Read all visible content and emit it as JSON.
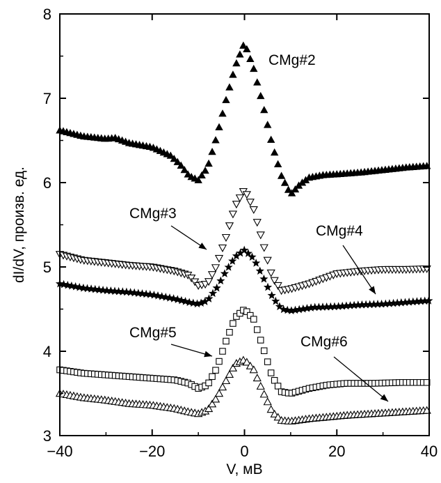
{
  "chart_data": {
    "type": "scatter",
    "xlabel": "V, мВ",
    "ylabel": "dI/dV, произв. ед.",
    "xlim": [
      -40,
      40
    ],
    "ylim": [
      3,
      8
    ],
    "xticks": [
      -40,
      -20,
      0,
      20,
      40
    ],
    "yticks": [
      3,
      4,
      5,
      6,
      7,
      8
    ],
    "grid": false,
    "series": [
      {
        "name": "CMg#2",
        "marker": "triangle-up-filled",
        "color": "#000000",
        "points": [
          [
            -40,
            6.62
          ],
          [
            -35,
            6.55
          ],
          [
            -30,
            6.52
          ],
          [
            -28,
            6.53
          ],
          [
            -25,
            6.47
          ],
          [
            -20,
            6.42
          ],
          [
            -16,
            6.32
          ],
          [
            -14,
            6.22
          ],
          [
            -12,
            6.08
          ],
          [
            -10,
            6.03
          ],
          [
            -8,
            6.18
          ],
          [
            -6,
            6.55
          ],
          [
            -4,
            6.98
          ],
          [
            -2,
            7.38
          ],
          [
            0,
            7.66
          ],
          [
            2,
            7.35
          ],
          [
            4,
            6.92
          ],
          [
            6,
            6.45
          ],
          [
            8,
            6.08
          ],
          [
            10,
            5.86
          ],
          [
            12,
            5.98
          ],
          [
            14,
            6.06
          ],
          [
            17,
            6.09
          ],
          [
            20,
            6.1
          ],
          [
            25,
            6.12
          ],
          [
            30,
            6.15
          ],
          [
            35,
            6.18
          ],
          [
            40,
            6.2
          ]
        ]
      },
      {
        "name": "CMg#3",
        "marker": "triangle-down-open",
        "color": "#000000",
        "points": [
          [
            -40,
            5.15
          ],
          [
            -35,
            5.08
          ],
          [
            -30,
            5.05
          ],
          [
            -25,
            5.02
          ],
          [
            -20,
            5.0
          ],
          [
            -15,
            4.95
          ],
          [
            -12,
            4.9
          ],
          [
            -10,
            4.78
          ],
          [
            -8,
            4.8
          ],
          [
            -6,
            5.02
          ],
          [
            -4,
            5.35
          ],
          [
            -2,
            5.72
          ],
          [
            0,
            5.92
          ],
          [
            2,
            5.68
          ],
          [
            4,
            5.28
          ],
          [
            6,
            4.88
          ],
          [
            8,
            4.72
          ],
          [
            10,
            4.74
          ],
          [
            14,
            4.8
          ],
          [
            18,
            4.88
          ],
          [
            20,
            4.92
          ],
          [
            25,
            4.95
          ],
          [
            30,
            4.97
          ],
          [
            35,
            4.97
          ],
          [
            40,
            4.98
          ]
        ]
      },
      {
        "name": "CMg#4",
        "marker": "star-filled",
        "color": "#000000",
        "points": [
          [
            -40,
            4.8
          ],
          [
            -35,
            4.75
          ],
          [
            -30,
            4.72
          ],
          [
            -25,
            4.7
          ],
          [
            -20,
            4.67
          ],
          [
            -15,
            4.62
          ],
          [
            -12,
            4.58
          ],
          [
            -10,
            4.56
          ],
          [
            -8,
            4.6
          ],
          [
            -6,
            4.75
          ],
          [
            -4,
            4.95
          ],
          [
            -2,
            5.12
          ],
          [
            0,
            5.2
          ],
          [
            2,
            5.1
          ],
          [
            4,
            4.88
          ],
          [
            6,
            4.65
          ],
          [
            8,
            4.5
          ],
          [
            10,
            4.48
          ],
          [
            15,
            4.52
          ],
          [
            20,
            4.53
          ],
          [
            25,
            4.55
          ],
          [
            30,
            4.56
          ],
          [
            35,
            4.58
          ],
          [
            40,
            4.6
          ]
        ]
      },
      {
        "name": "CMg#5",
        "marker": "square-open",
        "color": "#000000",
        "points": [
          [
            -40,
            3.78
          ],
          [
            -35,
            3.74
          ],
          [
            -30,
            3.72
          ],
          [
            -25,
            3.7
          ],
          [
            -20,
            3.68
          ],
          [
            -15,
            3.66
          ],
          [
            -12,
            3.62
          ],
          [
            -10,
            3.56
          ],
          [
            -8,
            3.6
          ],
          [
            -6,
            3.8
          ],
          [
            -4,
            4.12
          ],
          [
            -2,
            4.4
          ],
          [
            0,
            4.5
          ],
          [
            2,
            4.38
          ],
          [
            4,
            4.05
          ],
          [
            6,
            3.7
          ],
          [
            8,
            3.52
          ],
          [
            10,
            3.5
          ],
          [
            14,
            3.56
          ],
          [
            18,
            3.6
          ],
          [
            22,
            3.62
          ],
          [
            28,
            3.62
          ],
          [
            34,
            3.63
          ],
          [
            40,
            3.63
          ]
        ]
      },
      {
        "name": "CMg#6",
        "marker": "triangle-up-open",
        "color": "#000000",
        "points": [
          [
            -40,
            3.5
          ],
          [
            -35,
            3.45
          ],
          [
            -30,
            3.42
          ],
          [
            -25,
            3.38
          ],
          [
            -20,
            3.36
          ],
          [
            -15,
            3.32
          ],
          [
            -12,
            3.28
          ],
          [
            -10,
            3.26
          ],
          [
            -8,
            3.3
          ],
          [
            -6,
            3.45
          ],
          [
            -4,
            3.65
          ],
          [
            -2,
            3.85
          ],
          [
            0,
            3.9
          ],
          [
            2,
            3.78
          ],
          [
            4,
            3.52
          ],
          [
            6,
            3.28
          ],
          [
            8,
            3.18
          ],
          [
            10,
            3.17
          ],
          [
            14,
            3.2
          ],
          [
            18,
            3.22
          ],
          [
            22,
            3.24
          ],
          [
            28,
            3.26
          ],
          [
            34,
            3.28
          ],
          [
            40,
            3.3
          ]
        ]
      }
    ],
    "annotations": [
      {
        "text": "CMg#2",
        "arrow": false
      },
      {
        "text": "CMg#3",
        "arrow": true
      },
      {
        "text": "CMg#4",
        "arrow": true
      },
      {
        "text": "CMg#5",
        "arrow": true
      },
      {
        "text": "CMg#6",
        "arrow": true
      }
    ]
  }
}
